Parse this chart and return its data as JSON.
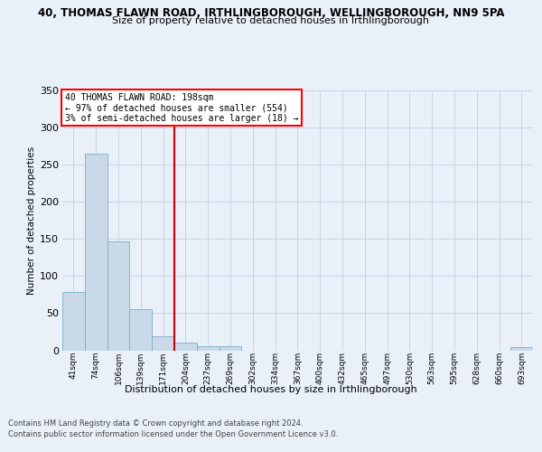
{
  "title_line1": "40, THOMAS FLAWN ROAD, IRTHLINGBOROUGH, WELLINGBOROUGH, NN9 5PA",
  "title_line2": "Size of property relative to detached houses in Irthlingborough",
  "xlabel": "Distribution of detached houses by size in Irthlingborough",
  "ylabel": "Number of detached properties",
  "bin_labels": [
    "41sqm",
    "74sqm",
    "106sqm",
    "139sqm",
    "171sqm",
    "204sqm",
    "237sqm",
    "269sqm",
    "302sqm",
    "334sqm",
    "367sqm",
    "400sqm",
    "432sqm",
    "465sqm",
    "497sqm",
    "530sqm",
    "563sqm",
    "595sqm",
    "628sqm",
    "660sqm",
    "693sqm"
  ],
  "bar_values": [
    78,
    265,
    147,
    56,
    19,
    10,
    5,
    5,
    0,
    0,
    0,
    0,
    0,
    0,
    0,
    0,
    0,
    0,
    0,
    0,
    4
  ],
  "bar_color": "#c9d9e8",
  "bar_edge_color": "#7aaec8",
  "red_line_bin": 5,
  "red_line_label": "40 THOMAS FLAWN ROAD: 198sqm",
  "annotation_line2": "← 97% of detached houses are smaller (554)",
  "annotation_line3": "3% of semi-detached houses are larger (18) →",
  "annotation_box_color": "white",
  "annotation_box_edge_color": "red",
  "red_line_color": "#cc0000",
  "grid_color": "#c8d4e8",
  "ylim": [
    0,
    350
  ],
  "yticks": [
    0,
    50,
    100,
    150,
    200,
    250,
    300,
    350
  ],
  "footer_line1": "Contains HM Land Registry data © Crown copyright and database right 2024.",
  "footer_line2": "Contains public sector information licensed under the Open Government Licence v3.0.",
  "bg_color": "#eaf0f8",
  "title1_fontsize": 8.5,
  "title2_fontsize": 8.0,
  "ylabel_fontsize": 7.5,
  "xlabel_fontsize": 8.0,
  "ytick_fontsize": 8.0,
  "xtick_fontsize": 6.5,
  "footer_fontsize": 6.0,
  "ann_fontsize": 7.0
}
